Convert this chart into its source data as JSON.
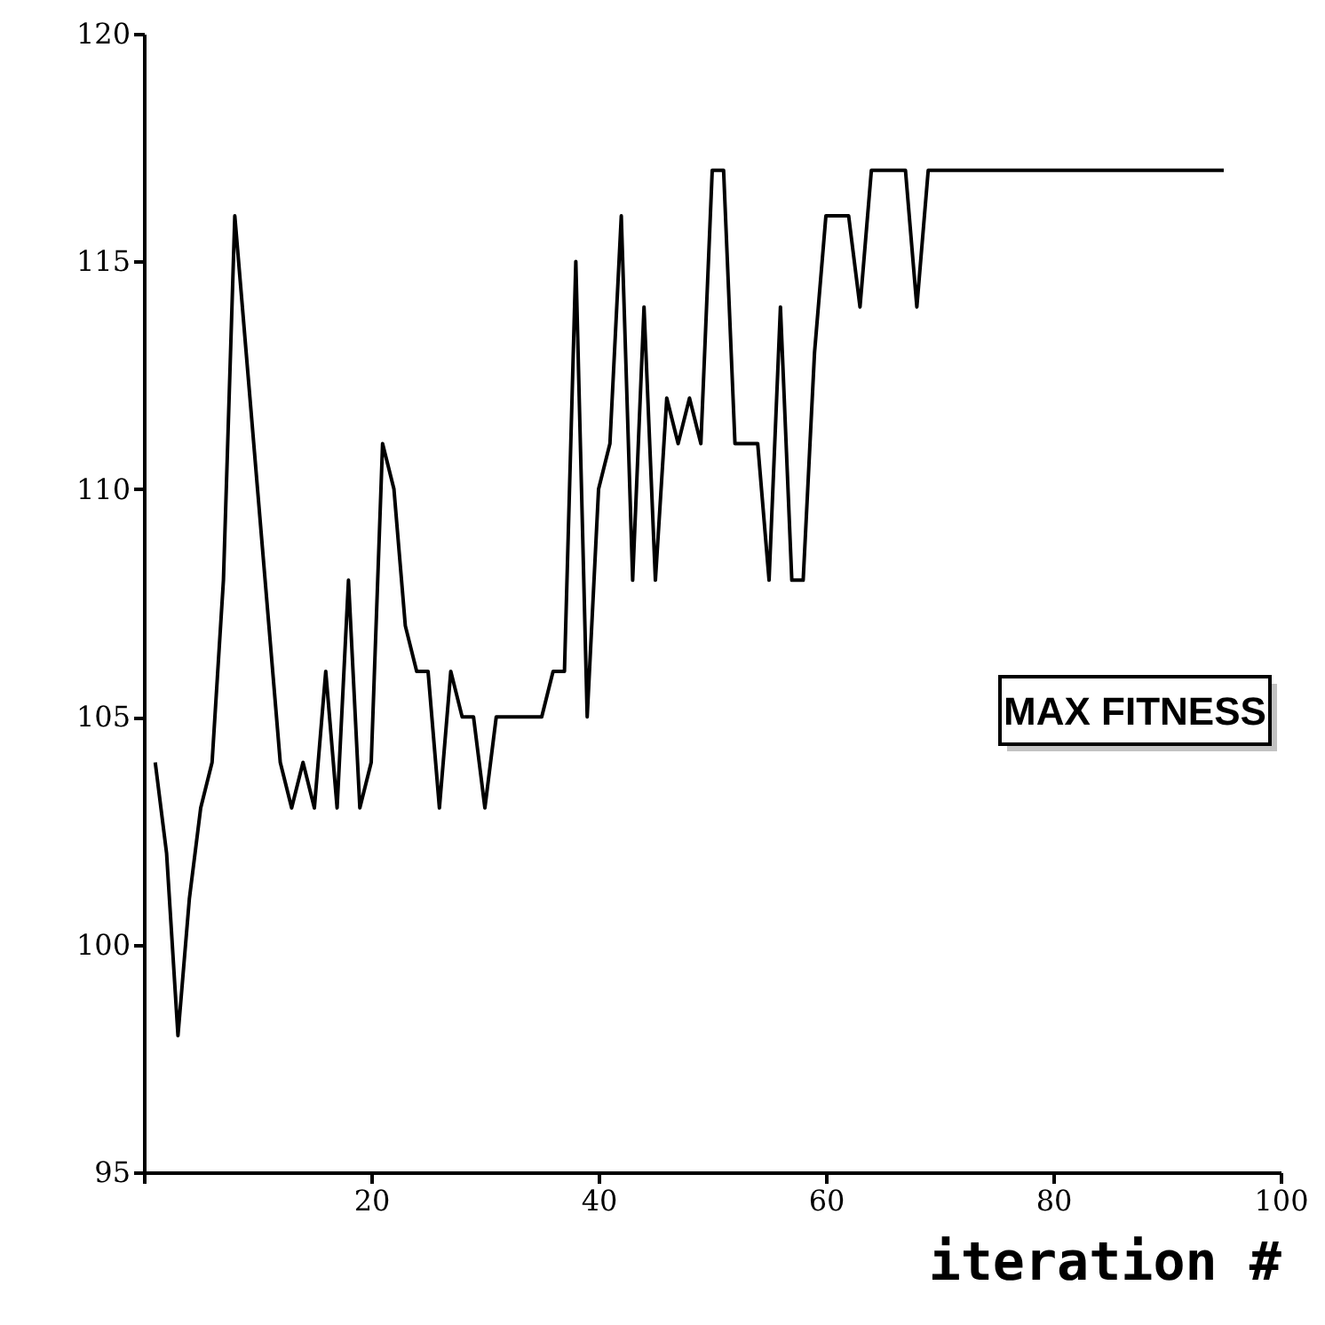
{
  "chart_data": {
    "type": "line",
    "xlabel": "iteration #",
    "annotations": [
      "MAX FITNESS"
    ],
    "x": [
      1,
      2,
      3,
      4,
      5,
      6,
      7,
      8,
      9,
      10,
      11,
      12,
      13,
      14,
      15,
      16,
      17,
      18,
      19,
      20,
      21,
      22,
      23,
      24,
      25,
      26,
      27,
      28,
      29,
      30,
      31,
      32,
      33,
      34,
      35,
      36,
      37,
      38,
      39,
      40,
      41,
      42,
      43,
      44,
      45,
      46,
      47,
      48,
      49,
      50,
      51,
      52,
      53,
      54,
      55,
      56,
      57,
      58,
      59,
      60,
      61,
      62,
      63,
      64,
      65,
      66,
      67,
      68,
      69,
      95
    ],
    "series": [
      {
        "color": "#000000",
        "values": [
          104,
          102,
          98,
          101,
          103,
          104,
          108,
          116,
          113,
          110,
          107,
          104,
          103,
          104,
          103,
          106,
          103,
          108,
          103,
          104,
          111,
          110,
          107,
          106,
          106,
          103,
          106,
          105,
          105,
          103,
          105,
          105,
          105,
          105,
          105,
          106,
          106,
          115,
          105,
          110,
          111,
          116,
          108,
          114,
          108,
          112,
          111,
          112,
          111,
          117,
          117,
          111,
          111,
          111,
          108,
          114,
          108,
          108,
          113,
          116,
          116,
          116,
          114,
          117,
          117,
          117,
          117,
          114,
          117,
          117
        ]
      }
    ],
    "xlim": [
      0,
      100
    ],
    "xticks": [
      {
        "value": 0,
        "label": null
      },
      20,
      40,
      60,
      80,
      100
    ],
    "ylim": [
      95,
      120
    ],
    "yticks": [
      95,
      100,
      105,
      110,
      115,
      120
    ],
    "grid": false,
    "marker": "none",
    "line_style": "solid"
  }
}
